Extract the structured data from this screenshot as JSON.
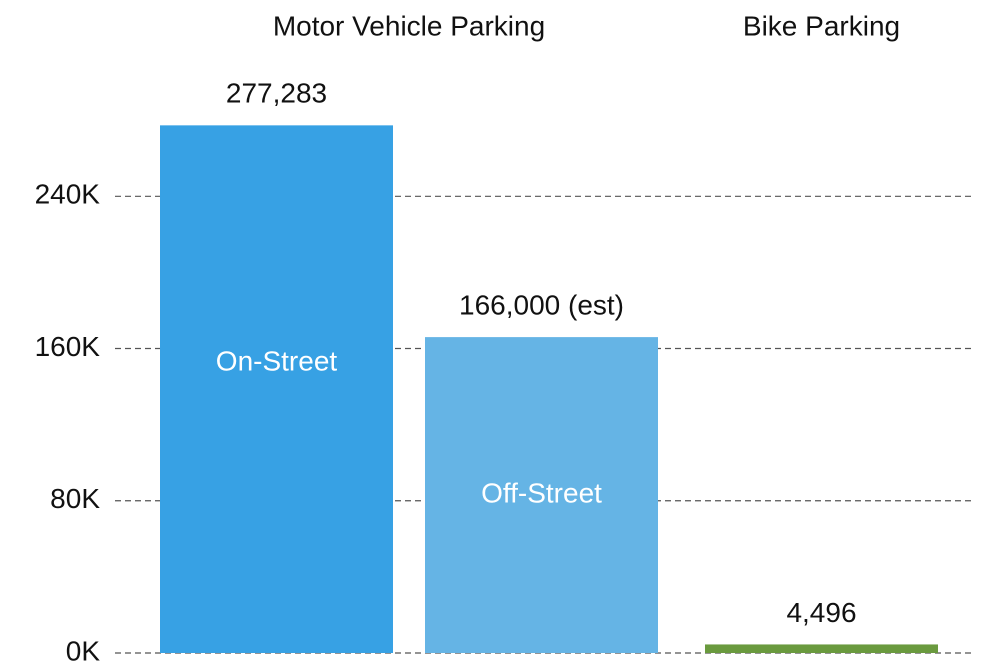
{
  "chart_data": {
    "type": "bar",
    "categories": [
      "On-Street",
      "Off-Street",
      null
    ],
    "values": [
      277283,
      166000,
      4496
    ],
    "value_labels": [
      "277,283",
      "166,000 (est)",
      "4,496"
    ],
    "colors": [
      "#37a1e4",
      "#65b4e5",
      "#6a9a3e"
    ],
    "groups": [
      {
        "name": "Motor Vehicle Parking",
        "members": [
          0,
          1
        ]
      },
      {
        "name": "Bike Parking",
        "members": [
          2
        ]
      }
    ],
    "ylim": [
      0,
      340000
    ],
    "yticks": [
      {
        "value": 0,
        "label": "0K"
      },
      {
        "value": 80000,
        "label": "80K"
      },
      {
        "value": 160000,
        "label": "160K"
      },
      {
        "value": 240000,
        "label": "240K"
      }
    ],
    "grid": true
  }
}
